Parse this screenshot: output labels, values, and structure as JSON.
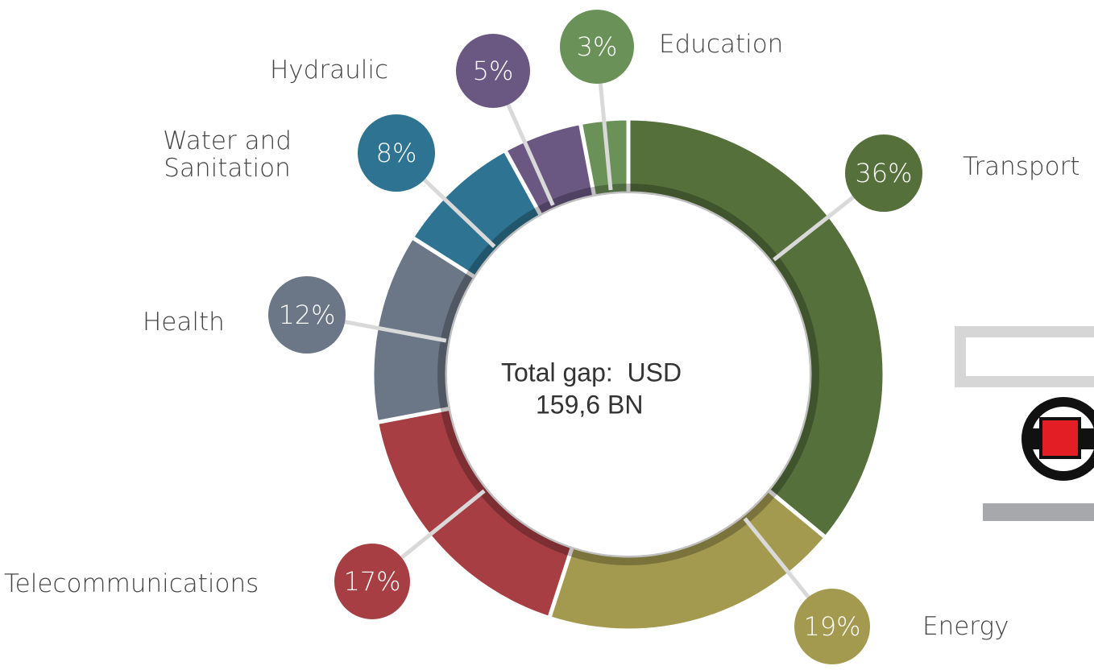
{
  "chart_data": {
    "type": "pie",
    "categories": [
      "Transport",
      "Energy",
      "Telecommunications",
      "Health",
      "Water and Sanitation",
      "Hydraulic",
      "Education"
    ],
    "values": [
      36,
      19,
      17,
      12,
      8,
      5,
      3
    ],
    "value_labels": [
      "36%",
      "19%",
      "17%",
      "12%",
      "8%",
      "5%",
      "3%"
    ],
    "colors": [
      "#55703b",
      "#a39a4f",
      "#a63e44",
      "#6b7686",
      "#2e7391",
      "#6a5782",
      "#6a9157"
    ],
    "annotations": [
      "Total gap:  USD",
      "159,6 BN"
    ]
  }
}
